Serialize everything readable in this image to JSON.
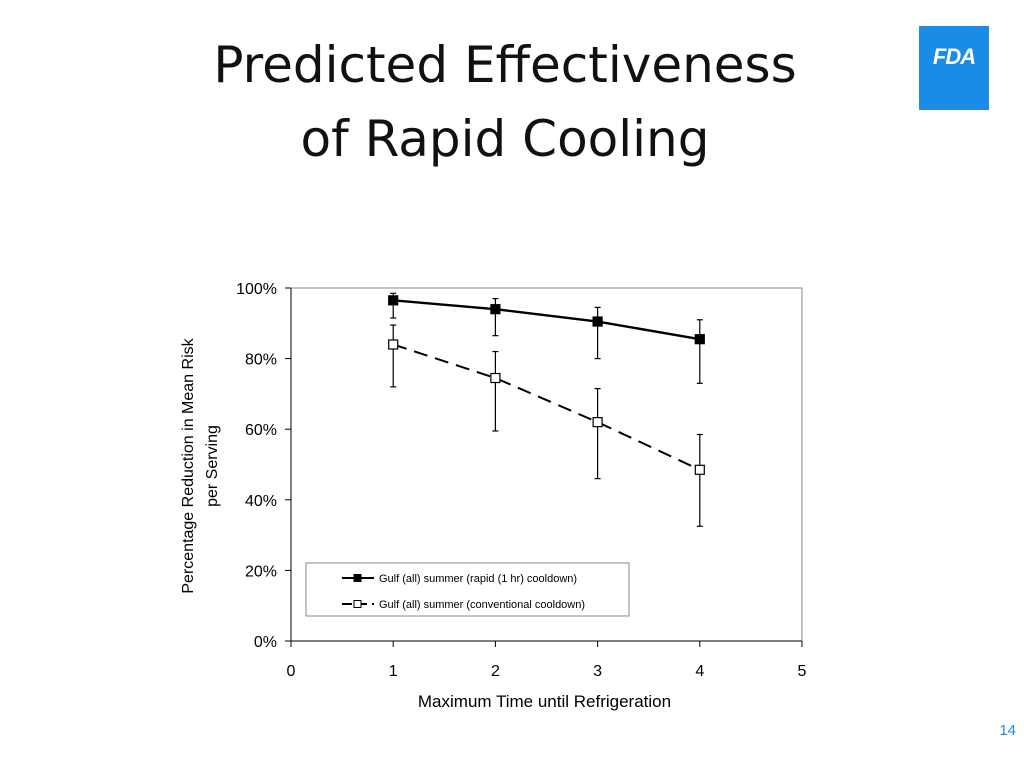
{
  "slide": {
    "title_lines": [
      "Predicted Effectiveness",
      "of Rapid Cooling"
    ],
    "logo_text": "FDA",
    "page_number": "14",
    "colors": {
      "accent": "#1a8ce8",
      "text": "#111111"
    }
  },
  "chart_data": {
    "type": "line",
    "title": "",
    "xlabel": "Maximum Time until Refrigeration",
    "ylabel_lines": [
      "Percentage Reduction in Mean Risk",
      "per Serving"
    ],
    "xlim": [
      0,
      5
    ],
    "ylim": [
      0,
      100
    ],
    "x_ticks": [
      "0",
      "1",
      "2",
      "3",
      "4",
      "5"
    ],
    "y_ticks": [
      "0%",
      "20%",
      "40%",
      "60%",
      "80%",
      "100%"
    ],
    "grid": false,
    "legend_position": "bottom-left",
    "series": [
      {
        "name": "Gulf (all) summer (rapid (1 hr) cooldown)",
        "x": [
          1,
          2,
          3,
          4
        ],
        "y": [
          96.5,
          94,
          90.5,
          85.5
        ],
        "err_low": [
          91.5,
          86.5,
          80,
          73
        ],
        "err_high": [
          98.5,
          97,
          94.5,
          91
        ],
        "marker": "filled-square",
        "line_style": "solid"
      },
      {
        "name": "Gulf (all) summer (conventional cooldown)",
        "x": [
          1,
          2,
          3,
          4
        ],
        "y": [
          84,
          74.5,
          62,
          48.5
        ],
        "err_low": [
          72,
          59.5,
          46,
          32.5
        ],
        "err_high": [
          89.5,
          82,
          71.5,
          58.5
        ],
        "marker": "open-square",
        "line_style": "dashed"
      }
    ]
  }
}
